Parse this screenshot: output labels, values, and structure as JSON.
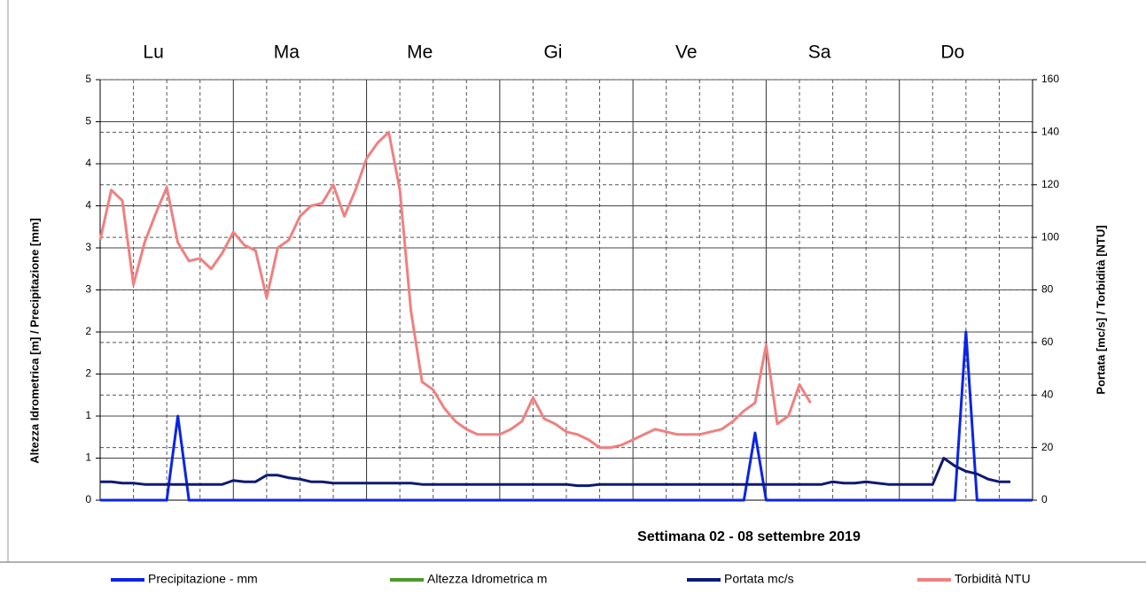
{
  "chart_data": {
    "type": "line",
    "xlabel": "Settimana  02 - 08  settembre  2019",
    "ylabel": "Altezza Idrometrica [m] / Precipitazione [mm]",
    "y2label": "Portata [mc/s] / Torbidità [NTU]",
    "categories": [
      "Lu",
      "Ma",
      "Me",
      "Gi",
      "Ve",
      "Sa",
      "Do"
    ],
    "x": [
      0,
      2,
      4,
      6,
      8,
      10,
      12,
      14,
      16,
      18,
      20,
      22,
      24,
      26,
      28,
      30,
      32,
      34,
      36,
      38,
      40,
      42,
      44,
      46,
      48,
      50,
      52,
      54,
      56,
      58,
      60,
      62,
      64,
      66,
      68,
      70,
      72,
      74,
      76,
      78,
      80,
      82,
      84,
      86,
      88,
      90,
      92,
      94,
      96,
      98,
      100,
      102,
      104,
      106,
      108,
      110,
      112,
      114,
      116,
      118,
      120,
      122,
      124,
      126,
      128,
      130,
      132,
      134,
      136,
      138,
      140,
      142,
      144,
      146,
      148,
      150,
      152,
      154,
      156,
      158,
      160,
      162,
      164,
      166,
      168
    ],
    "xlim": [
      0,
      168
    ],
    "ylim": [
      0,
      5
    ],
    "yticks": [
      0,
      {
        "value": 0.5,
        "label": "1"
      },
      1,
      {
        "value": 1.5,
        "label": "2"
      },
      2,
      {
        "value": 2.5,
        "label": "3"
      },
      3,
      {
        "value": 3.5,
        "label": "4"
      },
      4,
      {
        "value": 4.5,
        "label": "5"
      },
      5
    ],
    "y2lim": [
      0,
      160
    ],
    "y2ticks": [
      0,
      20,
      40,
      60,
      80,
      100,
      120,
      140,
      160
    ],
    "grid": true,
    "legend": "bottom",
    "series": [
      {
        "name": "Precipitazione - mm",
        "color": "#0a24e6",
        "values": [
          0,
          0,
          0,
          0,
          0,
          0,
          0,
          1.0,
          0,
          0,
          0,
          0,
          0,
          0,
          0,
          0,
          0,
          0,
          0,
          0,
          0,
          0,
          0,
          0,
          0,
          0,
          0,
          0,
          0,
          0,
          0,
          0,
          0,
          0,
          0,
          0,
          0,
          0,
          0,
          0,
          0,
          0,
          0,
          0,
          0,
          0,
          0,
          0,
          0,
          0,
          0,
          0,
          0,
          0,
          0,
          0,
          0,
          0,
          0,
          0.8,
          0,
          0,
          0,
          0,
          0,
          0,
          0,
          0,
          0,
          0,
          0,
          0,
          0,
          0,
          0,
          0,
          0,
          0,
          2.0,
          0,
          0,
          0,
          0,
          0,
          0
        ]
      },
      {
        "name": "Altezza Idrometrica m",
        "color": "#4c9a2a",
        "values": [
          null,
          null,
          null,
          null,
          null,
          null,
          null,
          null,
          null,
          null,
          null,
          null,
          null,
          null,
          null,
          null,
          null,
          null,
          null,
          null,
          null,
          null,
          null,
          null,
          null,
          null,
          null,
          null,
          null,
          null,
          null,
          null,
          null,
          null,
          null,
          null,
          null,
          null,
          null,
          null,
          null,
          null,
          null,
          null,
          null,
          null,
          null,
          null,
          null,
          null,
          null,
          null,
          null,
          null,
          null,
          null,
          null,
          null,
          null,
          null,
          null,
          null,
          null,
          null,
          null,
          null,
          null,
          null,
          null,
          null,
          null,
          null,
          null,
          null,
          null,
          null,
          null,
          null,
          null,
          null,
          null,
          null,
          null,
          null,
          null
        ]
      },
      {
        "name": "Portata mc/s",
        "color": "#0d1a73",
        "axis": "y2",
        "values": [
          7,
          7,
          6.5,
          6.5,
          6,
          6,
          6,
          6,
          6,
          6,
          6,
          6,
          7.5,
          7,
          7,
          9.5,
          9.5,
          8.5,
          8,
          7,
          7,
          6.5,
          6.5,
          6.5,
          6.5,
          6.5,
          6.5,
          6.5,
          6.5,
          6,
          6,
          6,
          6,
          6,
          6,
          6,
          6,
          6,
          6,
          6,
          6,
          6,
          6,
          5.5,
          5.5,
          6,
          6,
          6,
          6,
          6,
          6,
          6,
          6,
          6,
          6,
          6,
          6,
          6,
          6,
          6,
          6,
          6,
          6,
          6,
          6,
          6,
          7,
          6.5,
          6.5,
          7,
          6.5,
          6,
          6,
          6,
          6,
          6,
          16,
          13,
          11,
          10,
          8,
          7,
          7,
          null,
          null
        ]
      },
      {
        "name": "Torbidità NTU",
        "color": "#f08080",
        "axis": "y2",
        "values": [
          99,
          118,
          114,
          82,
          98,
          109,
          119,
          98,
          91,
          92,
          88,
          94,
          102,
          97,
          95,
          77,
          96,
          99,
          108,
          112,
          113,
          120,
          108,
          118,
          130,
          136,
          140,
          118,
          72,
          45,
          42,
          35,
          30,
          27,
          25,
          25,
          25,
          27,
          30,
          39,
          31,
          29,
          26,
          25,
          23,
          20,
          20,
          21,
          23,
          25,
          27,
          26,
          25,
          25,
          25,
          26,
          27,
          30,
          34,
          37,
          59,
          29,
          32,
          44,
          37,
          null,
          null,
          null,
          null,
          null,
          null,
          null,
          null,
          null,
          null,
          null,
          null,
          null,
          null,
          null,
          null,
          null,
          null,
          null,
          null
        ]
      }
    ]
  }
}
